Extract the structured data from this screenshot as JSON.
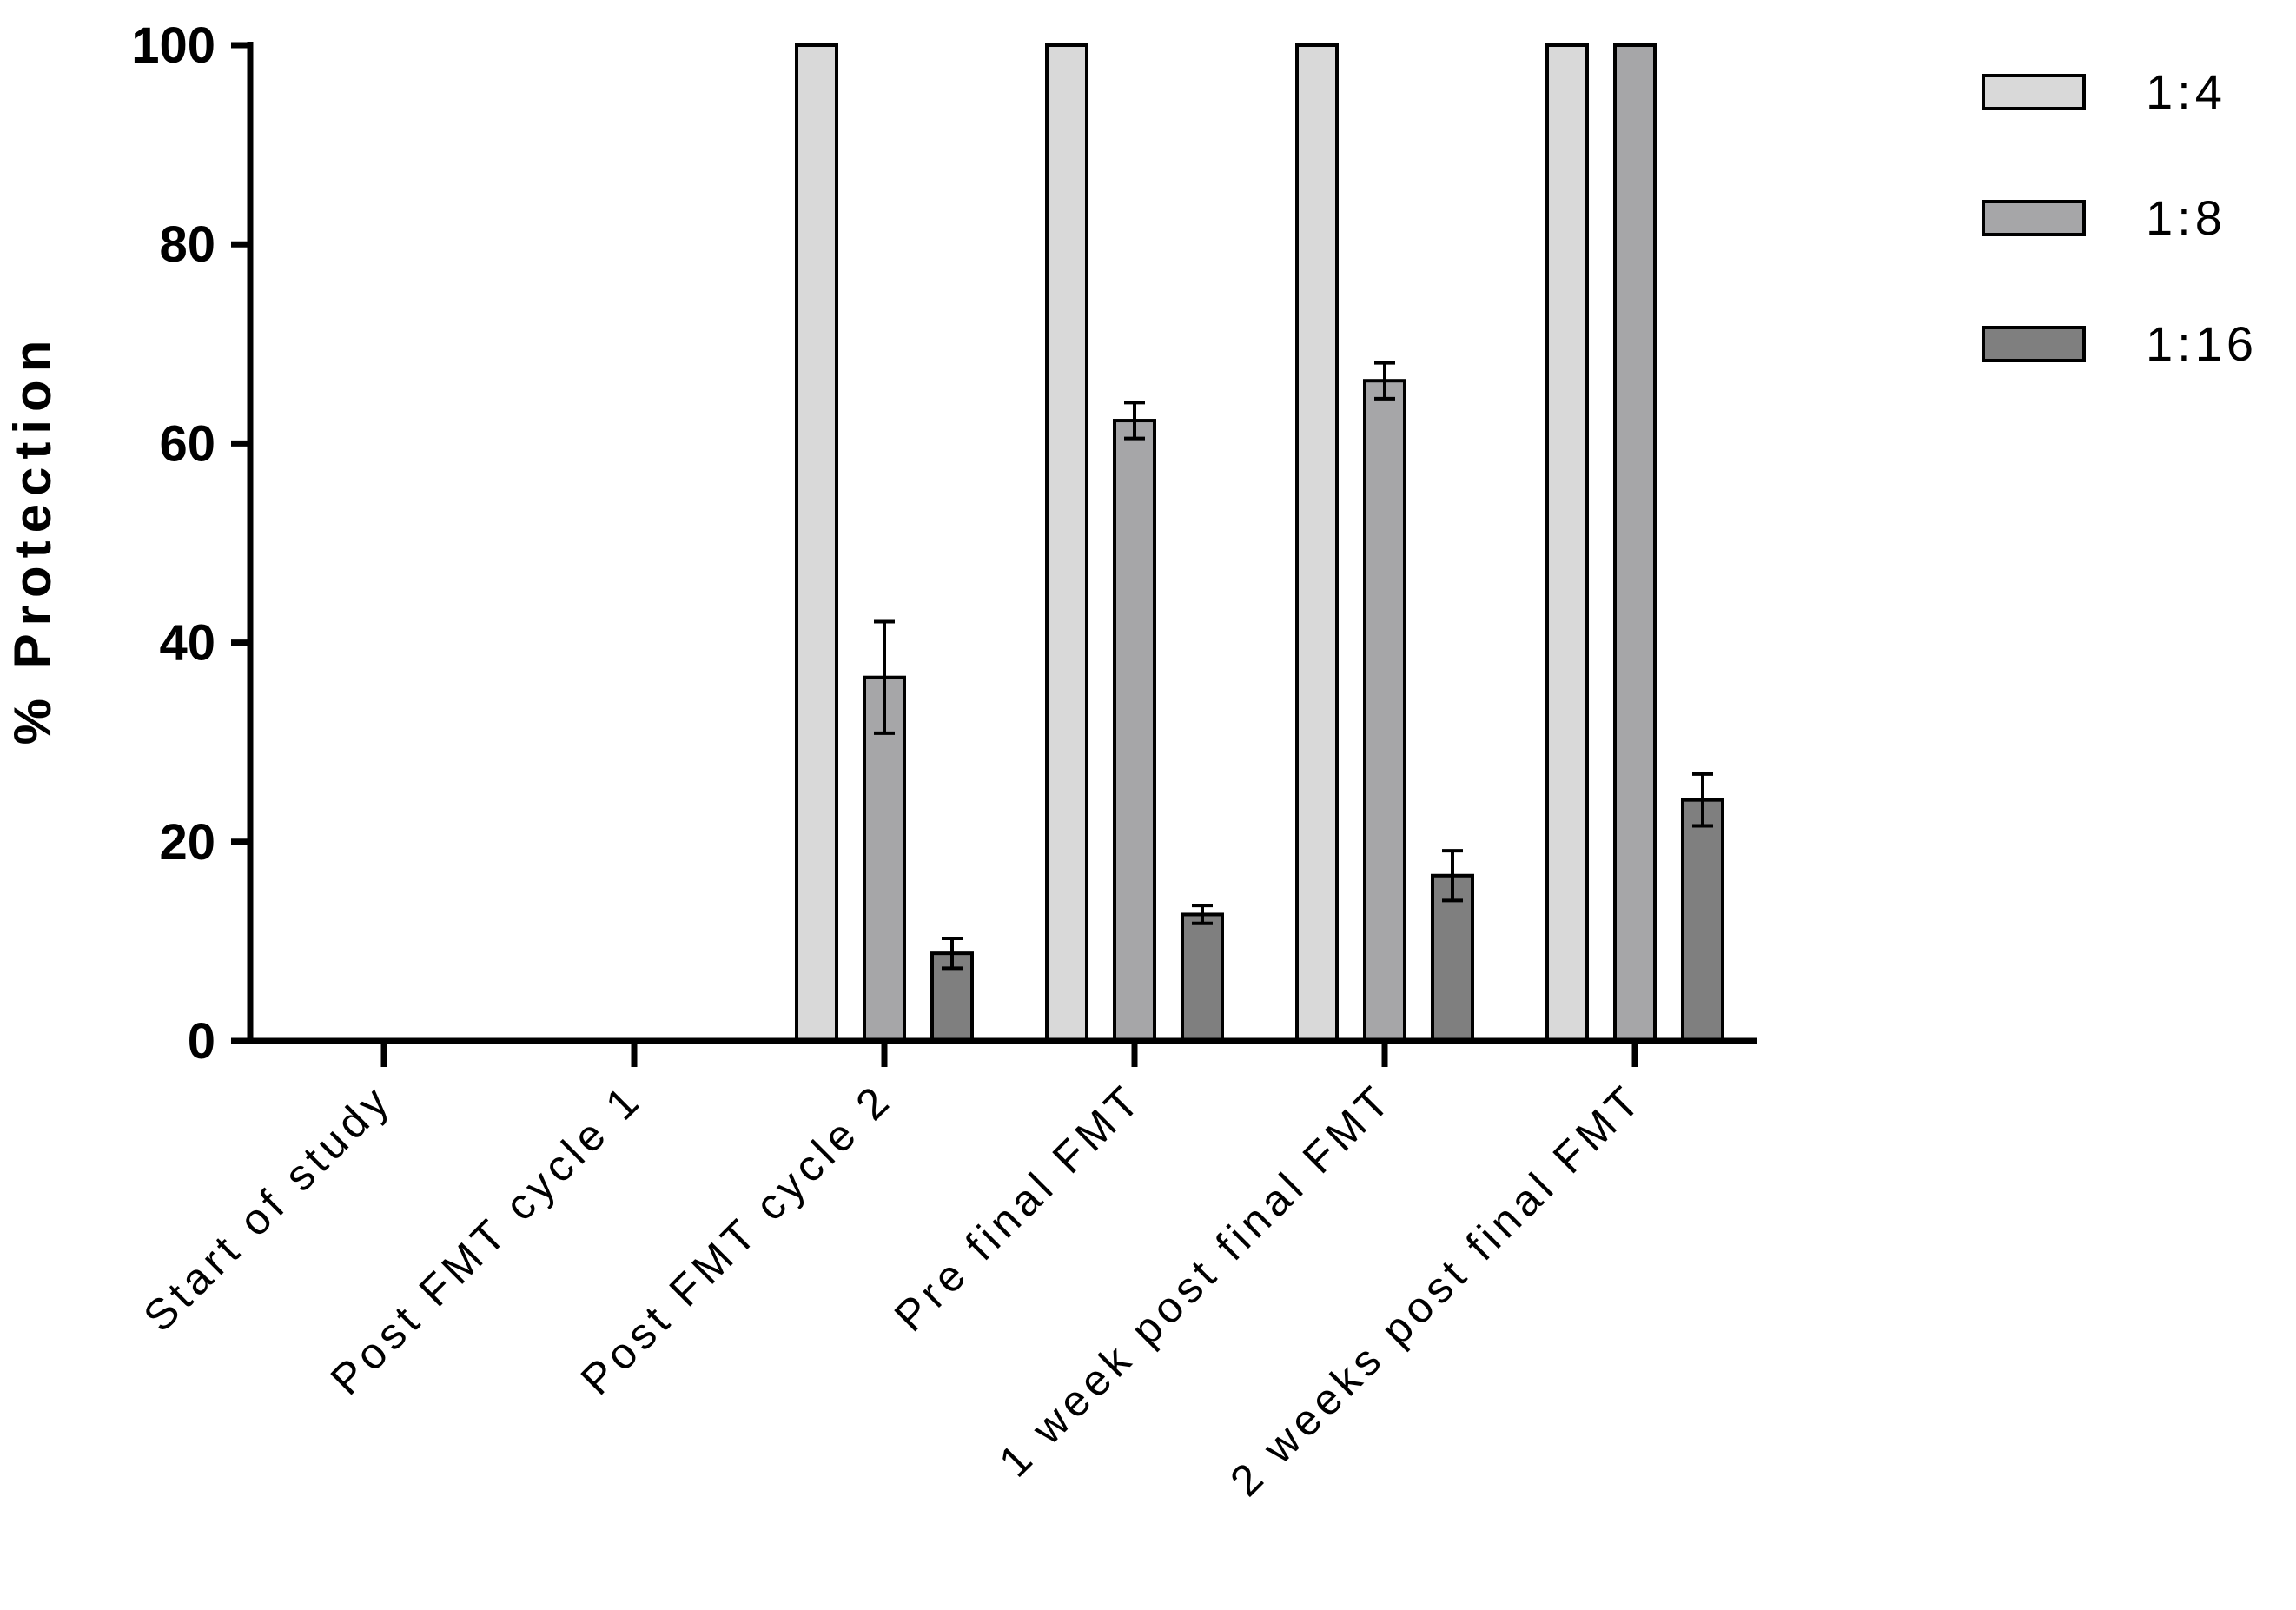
{
  "chart_data": {
    "type": "bar",
    "title": "",
    "xlabel": "",
    "ylabel": "% Protection",
    "ylim": [
      0,
      100
    ],
    "yticks": [
      "0",
      "20",
      "40",
      "60",
      "80",
      "100"
    ],
    "grid": false,
    "legend_position": "top-right",
    "categories": [
      "Start of study",
      "Post FMT cycle 1",
      "Post FMT cycle 2",
      "Pre final FMT",
      "1 week post final FMT",
      "2 weeks post final FMT"
    ],
    "series": [
      {
        "name": "1:4",
        "color": "#d9d9d9",
        "values": [
          0,
          0,
          100,
          100,
          100,
          100
        ],
        "error": [
          0,
          0,
          0,
          0,
          0,
          0
        ]
      },
      {
        "name": "1:8",
        "color": "#a6a6a8",
        "values": [
          0,
          0,
          36.5,
          62.3,
          66.3,
          100
        ],
        "error": [
          0,
          0,
          5.6,
          1.8,
          1.8,
          0
        ]
      },
      {
        "name": "1:16",
        "color": "#7f7f7f",
        "values": [
          0,
          0,
          8.8,
          12.7,
          16.6,
          24.2
        ],
        "error": [
          0,
          0,
          1.5,
          0.9,
          2.5,
          2.6
        ]
      }
    ]
  }
}
